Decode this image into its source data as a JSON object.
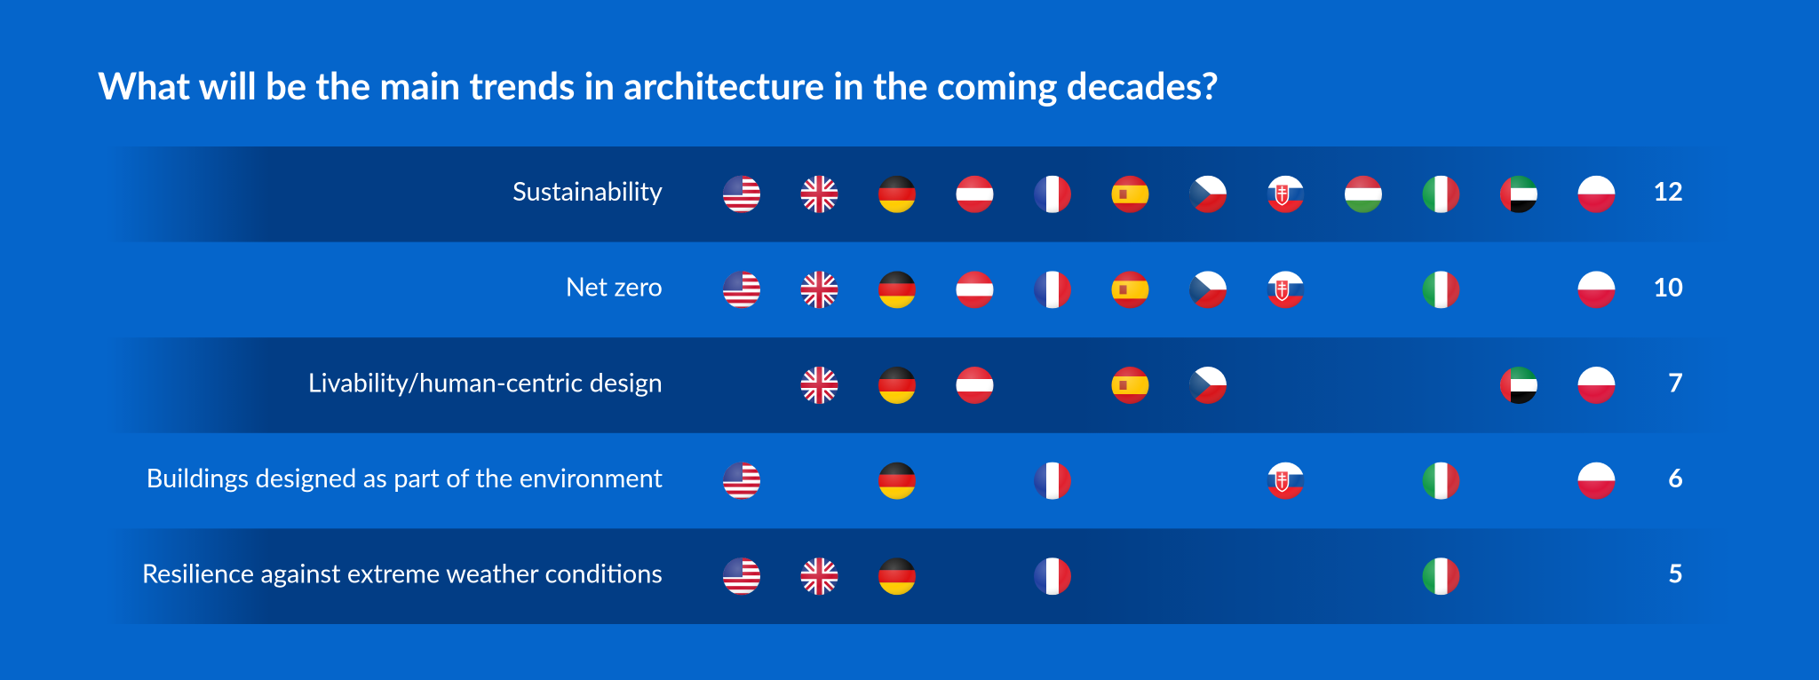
{
  "title": "What will be the main trends in architecture in the coming decades?",
  "rows": [
    {
      "label": "Sustainability",
      "count": "12",
      "present": [
        1,
        1,
        1,
        1,
        1,
        1,
        1,
        1,
        1,
        1,
        1,
        1
      ]
    },
    {
      "label": "Net zero",
      "count": "10",
      "present": [
        1,
        1,
        1,
        1,
        1,
        1,
        1,
        1,
        0,
        1,
        0,
        1
      ]
    },
    {
      "label": "Livability/human-centric design",
      "count": "7",
      "present": [
        0,
        1,
        1,
        1,
        0,
        1,
        1,
        0,
        0,
        0,
        1,
        1
      ]
    },
    {
      "label": "Buildings designed as part of the environment",
      "count": "6",
      "present": [
        1,
        0,
        1,
        0,
        1,
        0,
        0,
        1,
        0,
        1,
        0,
        1
      ]
    },
    {
      "label": "Resilience against extreme weather conditions",
      "count": "5",
      "present": [
        1,
        1,
        1,
        0,
        1,
        0,
        0,
        0,
        0,
        1,
        0,
        0
      ]
    }
  ]
}
